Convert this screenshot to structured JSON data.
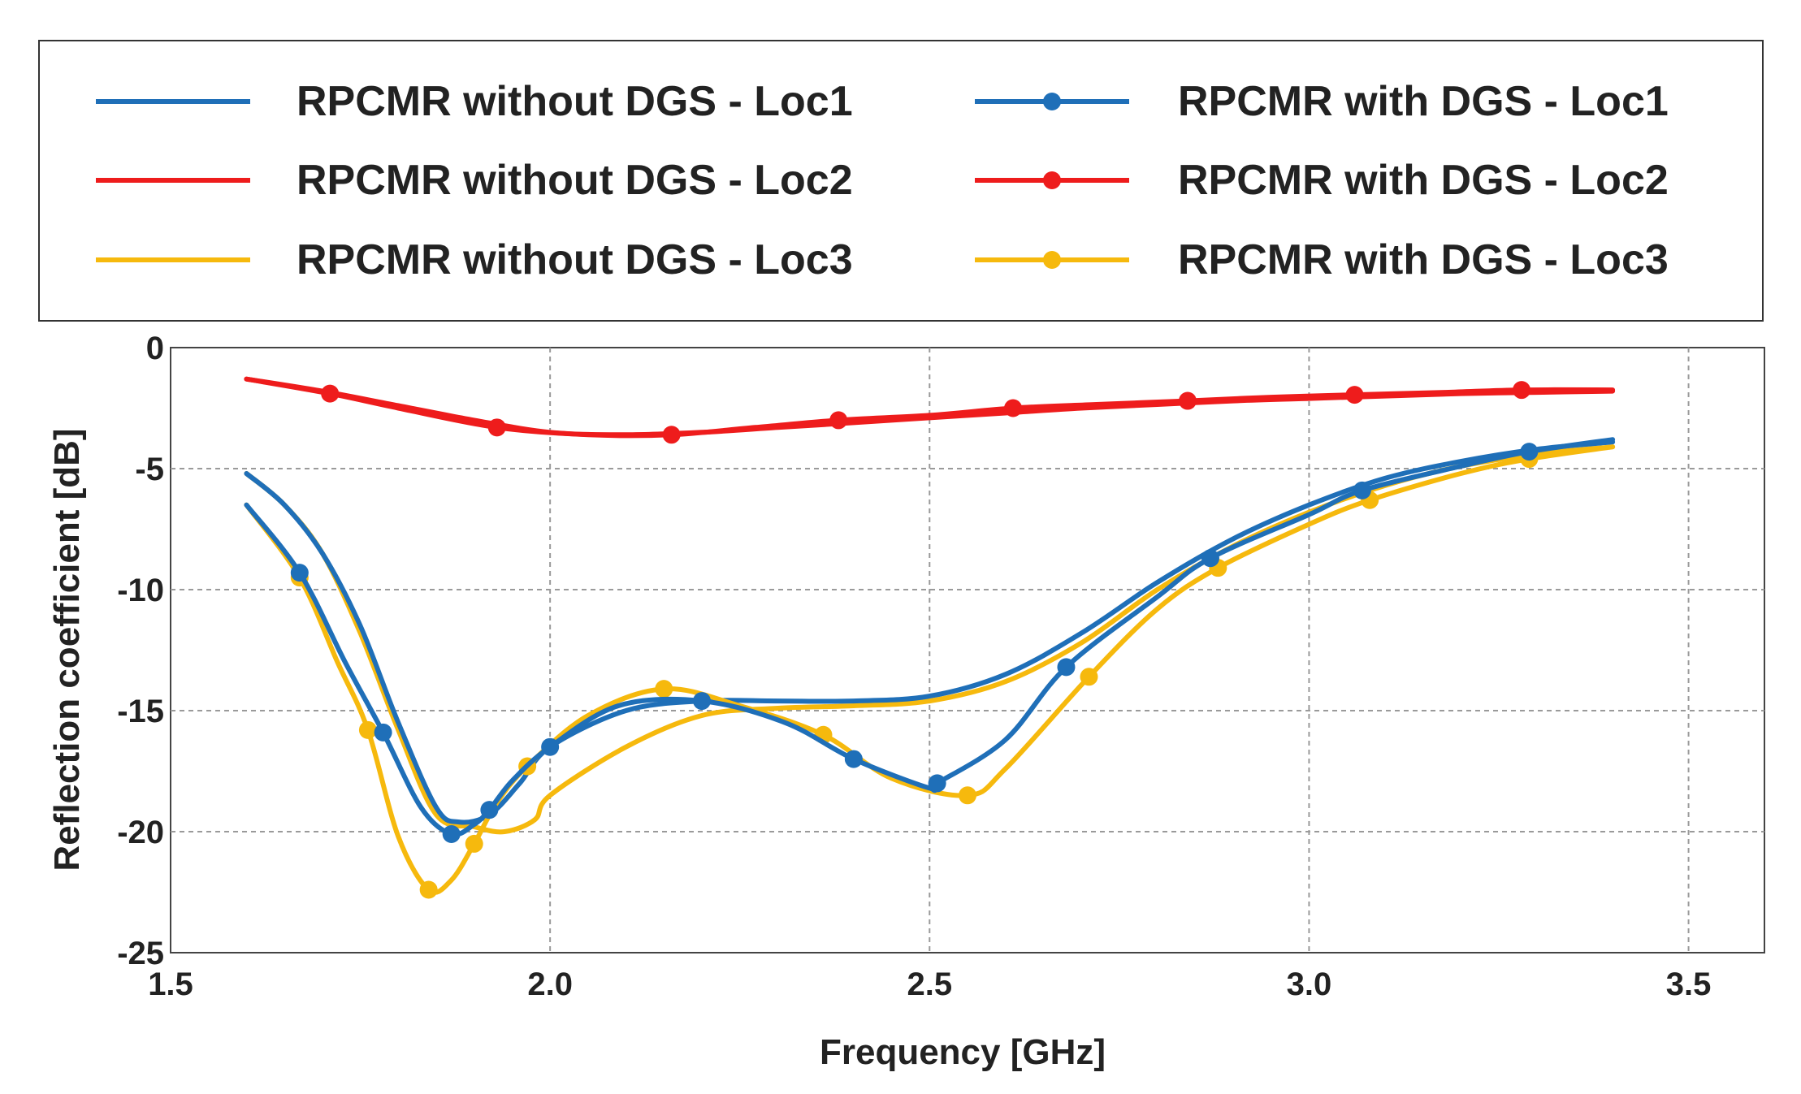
{
  "chart_data": {
    "type": "line",
    "title": "",
    "xlabel": "Frequency [GHz]",
    "ylabel": "Reflection coefficient [dB]",
    "xlim": [
      1.5,
      3.6
    ],
    "ylim": [
      -25,
      0
    ],
    "x_ticks": [
      "1.5",
      "2.0",
      "2.5",
      "3.0",
      "3.5"
    ],
    "y_ticks": [
      "0",
      "-5",
      "-10",
      "-15",
      "-20",
      "-25"
    ],
    "grid": true,
    "legend_position": "top (above plot, two columns)",
    "series": [
      {
        "name": "RPCMR without DGS - Loc1",
        "color": "#1f6fb8",
        "marker": "none",
        "x": [
          1.6,
          1.65,
          1.7,
          1.75,
          1.8,
          1.85,
          1.88,
          1.92,
          1.96,
          2.0,
          2.1,
          2.2,
          2.3,
          2.4,
          2.5,
          2.6,
          2.7,
          2.8,
          2.9,
          3.0,
          3.1,
          3.2,
          3.3,
          3.4
        ],
        "y": [
          -5.2,
          -6.5,
          -8.5,
          -11.5,
          -15.5,
          -19.0,
          -19.6,
          -19.3,
          -18.0,
          -16.5,
          -15.0,
          -14.6,
          -14.6,
          -14.6,
          -14.4,
          -13.5,
          -11.8,
          -9.7,
          -7.9,
          -6.5,
          -5.4,
          -4.7,
          -4.2,
          -3.9
        ]
      },
      {
        "name": "RPCMR without DGS - Loc2",
        "color": "#ee1c1c",
        "marker": "none",
        "x": [
          1.6,
          1.7,
          1.8,
          1.9,
          2.0,
          2.1,
          2.2,
          2.3,
          2.4,
          2.5,
          2.6,
          2.7,
          2.8,
          2.9,
          3.0,
          3.1,
          3.2,
          3.3,
          3.4
        ],
        "y": [
          -1.3,
          -1.8,
          -2.4,
          -3.0,
          -3.5,
          -3.6,
          -3.5,
          -3.3,
          -3.1,
          -2.9,
          -2.7,
          -2.5,
          -2.35,
          -2.2,
          -2.1,
          -2.0,
          -1.9,
          -1.85,
          -1.8
        ]
      },
      {
        "name": "RPCMR without DGS - Loc3",
        "color": "#f6b90d",
        "marker": "none",
        "x": [
          1.6,
          1.65,
          1.7,
          1.75,
          1.8,
          1.85,
          1.9,
          1.94,
          1.98,
          2.0,
          2.1,
          2.2,
          2.3,
          2.4,
          2.5,
          2.6,
          2.7,
          2.8,
          2.9,
          3.0,
          3.1,
          3.2,
          3.3,
          3.4
        ],
        "y": [
          -5.2,
          -6.5,
          -8.5,
          -11.8,
          -15.8,
          -19.3,
          -19.8,
          -20.0,
          -19.5,
          -18.5,
          -16.5,
          -15.2,
          -14.9,
          -14.8,
          -14.6,
          -13.8,
          -12.2,
          -10.0,
          -8.2,
          -6.8,
          -5.7,
          -4.9,
          -4.4,
          -4.1
        ]
      },
      {
        "name": "RPCMR with DGS - Loc1",
        "color": "#1f6fb8",
        "marker": "circle",
        "x": [
          1.6,
          1.67,
          1.73,
          1.78,
          1.83,
          1.87,
          1.9,
          1.92,
          1.95,
          2.0,
          2.09,
          2.2,
          2.31,
          2.4,
          2.5,
          2.51,
          2.6,
          2.68,
          2.8,
          2.87,
          3.0,
          3.07,
          3.2,
          3.29,
          3.4
        ],
        "y": [
          -6.5,
          -9.3,
          -13.0,
          -15.9,
          -19.0,
          -20.1,
          -19.7,
          -19.1,
          -17.9,
          -16.5,
          -14.8,
          -14.6,
          -15.5,
          -17.0,
          -18.2,
          -18.0,
          -16.2,
          -13.2,
          -10.3,
          -8.7,
          -6.9,
          -5.9,
          -4.9,
          -4.3,
          -3.8
        ]
      },
      {
        "name": "RPCMR with DGS - Loc2",
        "color": "#ee1c1c",
        "marker": "circle",
        "x": [
          1.6,
          1.71,
          1.8,
          1.93,
          2.05,
          2.16,
          2.27,
          2.38,
          2.5,
          2.61,
          2.72,
          2.84,
          2.95,
          3.06,
          3.18,
          3.28,
          3.4
        ],
        "y": [
          -1.3,
          -1.9,
          -2.5,
          -3.3,
          -3.6,
          -3.6,
          -3.3,
          -3.0,
          -2.8,
          -2.5,
          -2.35,
          -2.2,
          -2.05,
          -1.95,
          -1.85,
          -1.75,
          -1.75
        ]
      },
      {
        "name": "RPCMR with DGS - Loc3",
        "color": "#f6b90d",
        "marker": "circle",
        "x": [
          1.6,
          1.67,
          1.72,
          1.76,
          1.8,
          1.84,
          1.87,
          1.9,
          1.93,
          1.97,
          2.05,
          2.15,
          2.25,
          2.36,
          2.45,
          2.55,
          2.6,
          2.71,
          2.8,
          2.88,
          3.0,
          3.08,
          3.2,
          3.29,
          3.4
        ],
        "y": [
          -6.5,
          -9.5,
          -13.0,
          -15.8,
          -20.2,
          -22.4,
          -22.0,
          -20.5,
          -18.8,
          -17.3,
          -15.2,
          -14.1,
          -14.8,
          -16.0,
          -17.8,
          -18.5,
          -17.4,
          -13.6,
          -10.8,
          -9.1,
          -7.3,
          -6.3,
          -5.2,
          -4.6,
          -4.1
        ]
      }
    ]
  }
}
